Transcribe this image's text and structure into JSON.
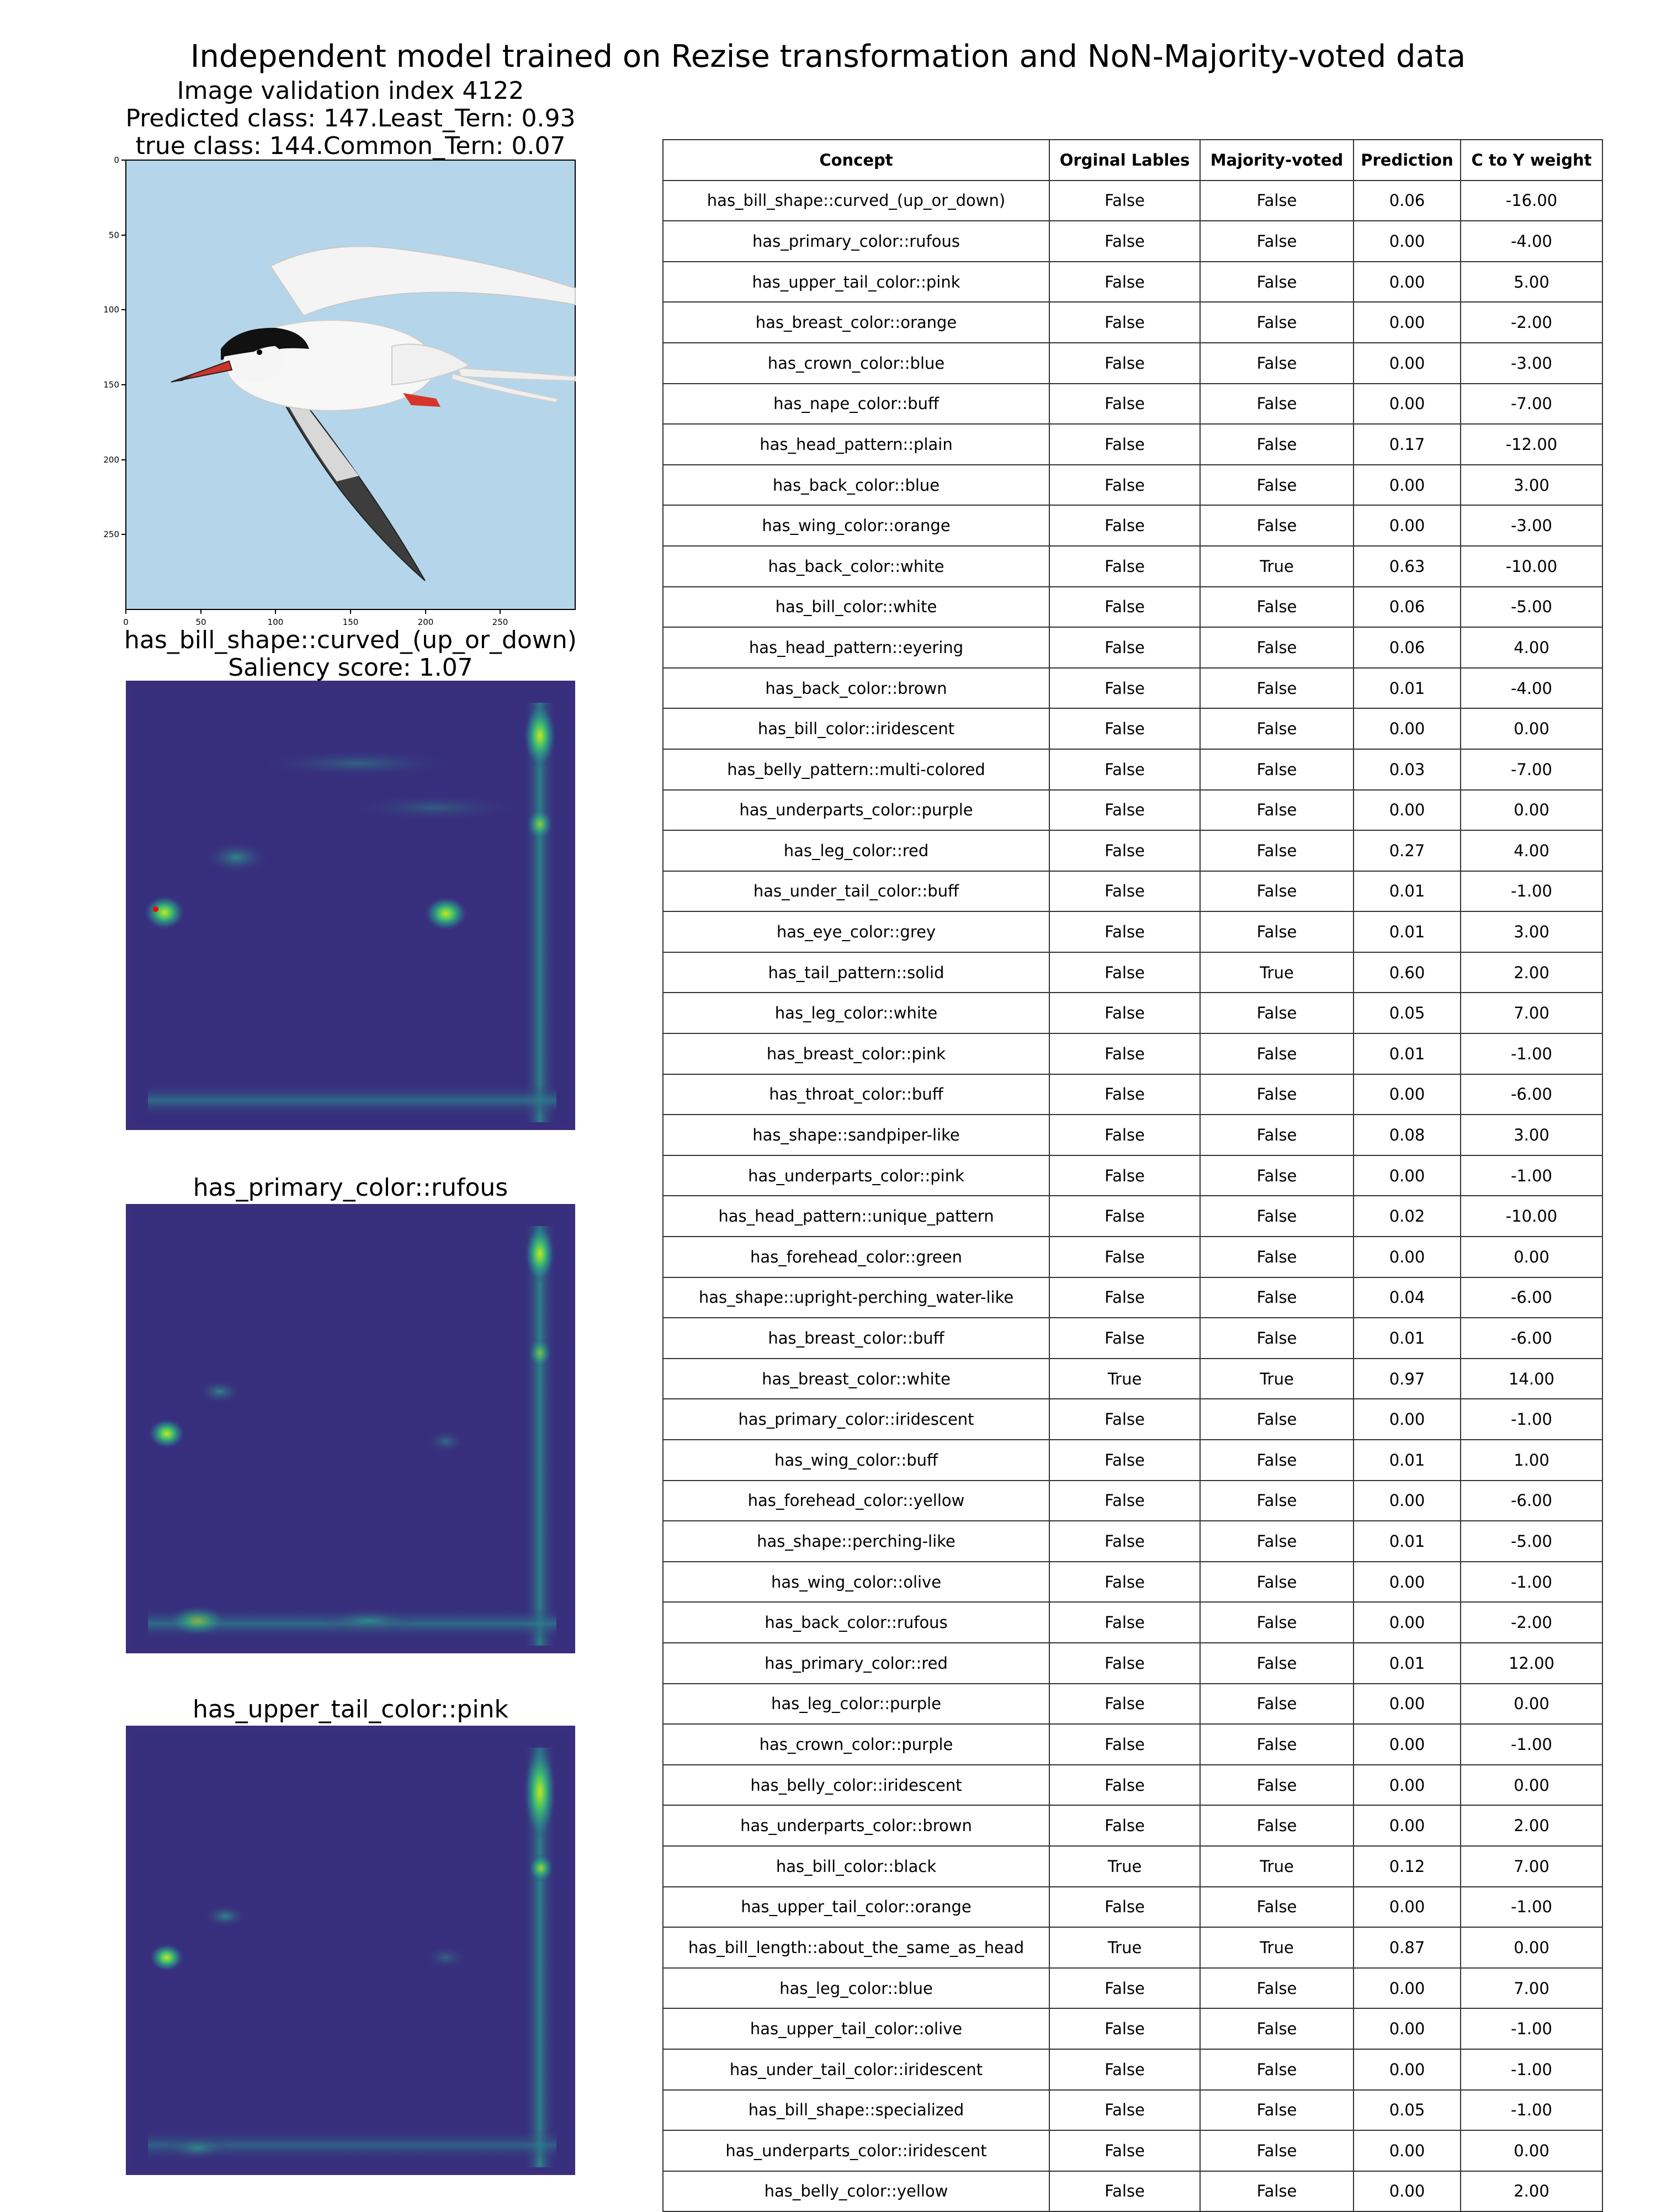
{
  "figure": {
    "title": "Independent model trained on Rezise transformation and NoN-Majority-voted data",
    "image_index": "Image validation index 4122",
    "predicted": "Predicted class: 147.Least_Tern: 0.93",
    "true_class": "true class: 144.Common_Tern: 0.07",
    "axis_ticks": [
      "0",
      "50",
      "100",
      "150",
      "200",
      "250"
    ]
  },
  "panels": [
    {
      "title": "has_bill_shape::curved_(up_or_down)",
      "subtitle": "Saliency score: 1.07"
    },
    {
      "title": "has_primary_color::rufous"
    },
    {
      "title": "has_upper_tail_color::pink"
    }
  ],
  "colors": {
    "sky": "#b5d6ea",
    "saliency_bg": "#3b2e7c",
    "saliency_hot": "#b8e020",
    "marker": "#ff0000"
  },
  "table": {
    "headers": [
      "Concept",
      "Orginal Lables",
      "Majority-voted",
      "Prediction",
      "C to Y weight"
    ],
    "rows": [
      [
        "has_bill_shape::curved_(up_or_down)",
        "False",
        "False",
        "0.06",
        "-16.00"
      ],
      [
        "has_primary_color::rufous",
        "False",
        "False",
        "0.00",
        "-4.00"
      ],
      [
        "has_upper_tail_color::pink",
        "False",
        "False",
        "0.00",
        "5.00"
      ],
      [
        "has_breast_color::orange",
        "False",
        "False",
        "0.00",
        "-2.00"
      ],
      [
        "has_crown_color::blue",
        "False",
        "False",
        "0.00",
        "-3.00"
      ],
      [
        "has_nape_color::buff",
        "False",
        "False",
        "0.00",
        "-7.00"
      ],
      [
        "has_head_pattern::plain",
        "False",
        "False",
        "0.17",
        "-12.00"
      ],
      [
        "has_back_color::blue",
        "False",
        "False",
        "0.00",
        "3.00"
      ],
      [
        "has_wing_color::orange",
        "False",
        "False",
        "0.00",
        "-3.00"
      ],
      [
        "has_back_color::white",
        "False",
        "True",
        "0.63",
        "-10.00"
      ],
      [
        "has_bill_color::white",
        "False",
        "False",
        "0.06",
        "-5.00"
      ],
      [
        "has_head_pattern::eyering",
        "False",
        "False",
        "0.06",
        "4.00"
      ],
      [
        "has_back_color::brown",
        "False",
        "False",
        "0.01",
        "-4.00"
      ],
      [
        "has_bill_color::iridescent",
        "False",
        "False",
        "0.00",
        "0.00"
      ],
      [
        "has_belly_pattern::multi-colored",
        "False",
        "False",
        "0.03",
        "-7.00"
      ],
      [
        "has_underparts_color::purple",
        "False",
        "False",
        "0.00",
        "0.00"
      ],
      [
        "has_leg_color::red",
        "False",
        "False",
        "0.27",
        "4.00"
      ],
      [
        "has_under_tail_color::buff",
        "False",
        "False",
        "0.01",
        "-1.00"
      ],
      [
        "has_eye_color::grey",
        "False",
        "False",
        "0.01",
        "3.00"
      ],
      [
        "has_tail_pattern::solid",
        "False",
        "True",
        "0.60",
        "2.00"
      ],
      [
        "has_leg_color::white",
        "False",
        "False",
        "0.05",
        "7.00"
      ],
      [
        "has_breast_color::pink",
        "False",
        "False",
        "0.01",
        "-1.00"
      ],
      [
        "has_throat_color::buff",
        "False",
        "False",
        "0.00",
        "-6.00"
      ],
      [
        "has_shape::sandpiper-like",
        "False",
        "False",
        "0.08",
        "3.00"
      ],
      [
        "has_underparts_color::pink",
        "False",
        "False",
        "0.00",
        "-1.00"
      ],
      [
        "has_head_pattern::unique_pattern",
        "False",
        "False",
        "0.02",
        "-10.00"
      ],
      [
        "has_forehead_color::green",
        "False",
        "False",
        "0.00",
        "0.00"
      ],
      [
        "has_shape::upright-perching_water-like",
        "False",
        "False",
        "0.04",
        "-6.00"
      ],
      [
        "has_breast_color::buff",
        "False",
        "False",
        "0.01",
        "-6.00"
      ],
      [
        "has_breast_color::white",
        "True",
        "True",
        "0.97",
        "14.00"
      ],
      [
        "has_primary_color::iridescent",
        "False",
        "False",
        "0.00",
        "-1.00"
      ],
      [
        "has_wing_color::buff",
        "False",
        "False",
        "0.01",
        "1.00"
      ],
      [
        "has_forehead_color::yellow",
        "False",
        "False",
        "0.00",
        "-6.00"
      ],
      [
        "has_shape::perching-like",
        "False",
        "False",
        "0.01",
        "-5.00"
      ],
      [
        "has_wing_color::olive",
        "False",
        "False",
        "0.00",
        "-1.00"
      ],
      [
        "has_back_color::rufous",
        "False",
        "False",
        "0.00",
        "-2.00"
      ],
      [
        "has_primary_color::red",
        "False",
        "False",
        "0.01",
        "12.00"
      ],
      [
        "has_leg_color::purple",
        "False",
        "False",
        "0.00",
        "0.00"
      ],
      [
        "has_crown_color::purple",
        "False",
        "False",
        "0.00",
        "-1.00"
      ],
      [
        "has_belly_color::iridescent",
        "False",
        "False",
        "0.00",
        "0.00"
      ],
      [
        "has_underparts_color::brown",
        "False",
        "False",
        "0.00",
        "2.00"
      ],
      [
        "has_bill_color::black",
        "True",
        "True",
        "0.12",
        "7.00"
      ],
      [
        "has_upper_tail_color::orange",
        "False",
        "False",
        "0.00",
        "-1.00"
      ],
      [
        "has_bill_length::about_the_same_as_head",
        "True",
        "True",
        "0.87",
        "0.00"
      ],
      [
        "has_leg_color::blue",
        "False",
        "False",
        "0.00",
        "7.00"
      ],
      [
        "has_upper_tail_color::olive",
        "False",
        "False",
        "0.00",
        "-1.00"
      ],
      [
        "has_under_tail_color::iridescent",
        "False",
        "False",
        "0.00",
        "-1.00"
      ],
      [
        "has_bill_shape::specialized",
        "False",
        "False",
        "0.05",
        "-1.00"
      ],
      [
        "has_underparts_color::iridescent",
        "False",
        "False",
        "0.00",
        "0.00"
      ],
      [
        "has_belly_color::yellow",
        "False",
        "False",
        "0.00",
        "2.00"
      ]
    ]
  }
}
